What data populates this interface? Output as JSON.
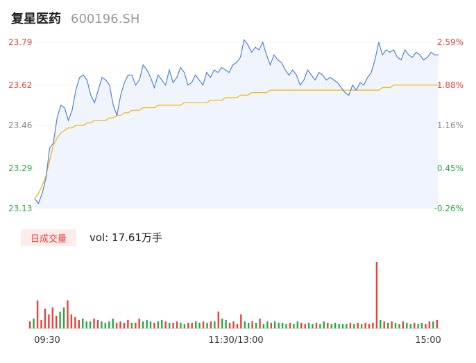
{
  "header": {
    "name": "复星医药",
    "code": "600196.SH"
  },
  "colors": {
    "price_line": "#4f7fe0",
    "avg_line": "#f5b400",
    "up": "#e8413b",
    "down": "#2aa845",
    "flat": "#888888",
    "area_fill": "#f0f4fd"
  },
  "volume": {
    "badge": "日成交量",
    "label": "vol: 17.61万手"
  },
  "chart_data": {
    "type": "line",
    "title": "",
    "y_left_ticks": [
      "23.79",
      "23.62",
      "23.46",
      "23.29",
      "23.13"
    ],
    "y_right_ticks": [
      "2.59%",
      "1.88%",
      "1.16%",
      "0.45%",
      "-0.26%"
    ],
    "y_tick_values": [
      23.79,
      23.62,
      23.46,
      23.29,
      23.13
    ],
    "ylim": [
      23.13,
      23.79
    ],
    "x_ticks": [
      "09:30",
      "11:30/13:00",
      "15:00"
    ],
    "series": [
      {
        "values": [
          23.17,
          23.15,
          23.19,
          23.25,
          23.37,
          23.39,
          23.49,
          23.54,
          23.53,
          23.48,
          23.52,
          23.6,
          23.65,
          23.66,
          23.64,
          23.58,
          23.55,
          23.6,
          23.65,
          23.64,
          23.62,
          23.54,
          23.5,
          23.58,
          23.63,
          23.66,
          23.66,
          23.62,
          23.64,
          23.7,
          23.68,
          23.65,
          23.61,
          23.66,
          23.64,
          23.62,
          23.68,
          23.63,
          23.65,
          23.69,
          23.67,
          23.62,
          23.63,
          23.66,
          23.64,
          23.62,
          23.67,
          23.65,
          23.68,
          23.67,
          23.69,
          23.68,
          23.67,
          23.7,
          23.71,
          23.73,
          23.8,
          23.78,
          23.75,
          23.77,
          23.76,
          23.79,
          23.74,
          23.7,
          23.74,
          23.72,
          23.71,
          23.68,
          23.66,
          23.68,
          23.66,
          23.62,
          23.64,
          23.68,
          23.66,
          23.64,
          23.67,
          23.66,
          23.64,
          23.65,
          23.64,
          23.63,
          23.61,
          23.59,
          23.58,
          23.62,
          23.6,
          23.63,
          23.62,
          23.65,
          23.67,
          23.72,
          23.79,
          23.74,
          23.76,
          23.75,
          23.76,
          23.73,
          23.72,
          23.76,
          23.74,
          23.73,
          23.75,
          23.74,
          23.72,
          23.73,
          23.75,
          23.74,
          23.74
        ]
      },
      {
        "values": [
          23.17,
          23.19,
          23.22,
          23.26,
          23.32,
          23.38,
          23.41,
          23.43,
          23.44,
          23.45,
          23.45,
          23.46,
          23.46,
          23.46,
          23.47,
          23.47,
          23.48,
          23.48,
          23.48,
          23.48,
          23.49,
          23.49,
          23.5,
          23.5,
          23.51,
          23.51,
          23.52,
          23.52,
          23.52,
          23.53,
          23.53,
          23.53,
          23.53,
          23.54,
          23.54,
          23.54,
          23.54,
          23.54,
          23.54,
          23.54,
          23.55,
          23.55,
          23.55,
          23.55,
          23.55,
          23.55,
          23.55,
          23.56,
          23.56,
          23.56,
          23.56,
          23.57,
          23.57,
          23.57,
          23.57,
          23.58,
          23.58,
          23.58,
          23.59,
          23.59,
          23.59,
          23.59,
          23.59,
          23.6,
          23.6,
          23.6,
          23.6,
          23.6,
          23.6,
          23.6,
          23.6,
          23.6,
          23.6,
          23.6,
          23.6,
          23.6,
          23.6,
          23.6,
          23.6,
          23.6,
          23.6,
          23.6,
          23.6,
          23.6,
          23.6,
          23.6,
          23.6,
          23.6,
          23.6,
          23.6,
          23.6,
          23.6,
          23.6,
          23.61,
          23.61,
          23.61,
          23.62,
          23.62,
          23.62,
          23.62,
          23.62,
          23.62,
          23.62,
          23.62,
          23.62,
          23.62,
          23.62,
          23.62,
          23.62
        ]
      },
      {
        "values": [
          10,
          14,
          40,
          12,
          28,
          20,
          30,
          18,
          24,
          30,
          40,
          20,
          16,
          12,
          14,
          10,
          10,
          14,
          12,
          10,
          8,
          10,
          14,
          8,
          10,
          8,
          12,
          8,
          8,
          14,
          10,
          12,
          10,
          8,
          10,
          12,
          10,
          8,
          8,
          10,
          8,
          6,
          8,
          8,
          10,
          8,
          10,
          8,
          10,
          10,
          24,
          14,
          12,
          8,
          10,
          6,
          20,
          10,
          8,
          10,
          8,
          14,
          6,
          10,
          8,
          10,
          8,
          8,
          6,
          8,
          6,
          10,
          8,
          6,
          8,
          6,
          8,
          6,
          10,
          8,
          6,
          8,
          6,
          6,
          6,
          8,
          6,
          8,
          6,
          8,
          6,
          8,
          95,
          12,
          10,
          8,
          10,
          8,
          6,
          10,
          8,
          6,
          8,
          6,
          8,
          6,
          10,
          10,
          12
        ]
      }
    ]
  }
}
